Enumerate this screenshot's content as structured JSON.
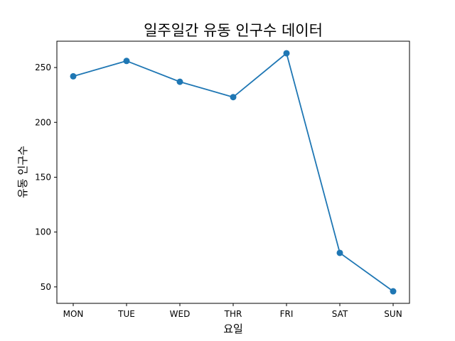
{
  "chart_data": {
    "type": "line",
    "title": "일주일간 유동 인구수 데이터",
    "xlabel": "요일",
    "ylabel": "유동 인구수",
    "categories": [
      "MON",
      "TUE",
      "WED",
      "THR",
      "FRI",
      "SAT",
      "SUN"
    ],
    "series": [
      {
        "values": [
          242,
          256,
          237,
          223,
          263,
          81,
          46
        ],
        "color": "#1f77b4",
        "marker": "circle"
      }
    ],
    "yticks": [
      50,
      100,
      150,
      200,
      250
    ],
    "ylim": [
      35,
      274
    ],
    "grid": false,
    "legend": "none"
  }
}
